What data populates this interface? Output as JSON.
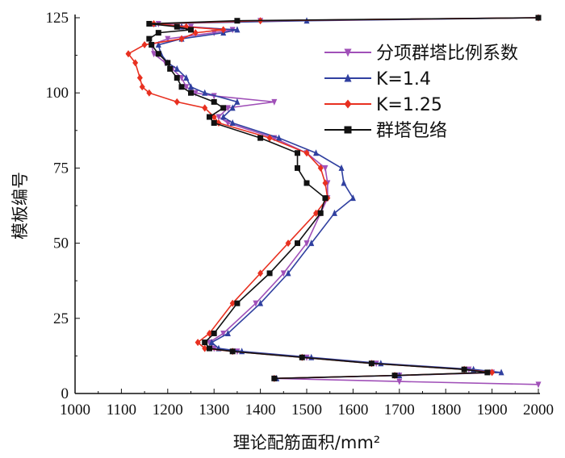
{
  "chart_data": {
    "type": "line",
    "xlabel": "理论配筋面积/mm²",
    "ylabel": "模板编号",
    "xlim": [
      1000,
      2000
    ],
    "ylim": [
      0,
      125
    ],
    "xticks": [
      "1000",
      "1100",
      "1200",
      "1300",
      "1400",
      "1500",
      "1600",
      "1700",
      "1800",
      "1900",
      "2000"
    ],
    "yticks": [
      "0",
      "25",
      "50",
      "75",
      "100",
      "125"
    ],
    "legend_position": "top-right",
    "series": [
      {
        "name": "分项群塔比例系数",
        "color": "#a050b8",
        "marker": "triangle-down",
        "points": [
          [
            2000,
            3
          ],
          [
            1700,
            4
          ],
          [
            1430,
            5
          ],
          [
            1700,
            6
          ],
          [
            1900,
            7
          ],
          [
            1850,
            8
          ],
          [
            1650,
            10
          ],
          [
            1500,
            12
          ],
          [
            1350,
            14
          ],
          [
            1300,
            15
          ],
          [
            1290,
            17
          ],
          [
            1320,
            20
          ],
          [
            1390,
            30
          ],
          [
            1450,
            40
          ],
          [
            1500,
            50
          ],
          [
            1530,
            60
          ],
          [
            1545,
            65
          ],
          [
            1545,
            70
          ],
          [
            1540,
            75
          ],
          [
            1500,
            80
          ],
          [
            1430,
            85
          ],
          [
            1330,
            90
          ],
          [
            1310,
            92
          ],
          [
            1330,
            95
          ],
          [
            1430,
            97
          ],
          [
            1300,
            99
          ],
          [
            1260,
            100
          ],
          [
            1240,
            102
          ],
          [
            1230,
            105
          ],
          [
            1210,
            108
          ],
          [
            1195,
            110
          ],
          [
            1170,
            113
          ],
          [
            1165,
            116
          ],
          [
            1200,
            118
          ],
          [
            1300,
            120
          ],
          [
            1340,
            121
          ],
          [
            1250,
            122
          ],
          [
            1180,
            123
          ],
          [
            1400,
            124
          ],
          [
            2000,
            125
          ]
        ]
      },
      {
        "name": "K=1.4",
        "color": "#3040a0",
        "marker": "triangle-up",
        "points": [
          [
            1435,
            5
          ],
          [
            1700,
            6
          ],
          [
            1920,
            7
          ],
          [
            1860,
            8
          ],
          [
            1660,
            10
          ],
          [
            1510,
            12
          ],
          [
            1360,
            14
          ],
          [
            1310,
            15
          ],
          [
            1295,
            17
          ],
          [
            1330,
            20
          ],
          [
            1400,
            30
          ],
          [
            1460,
            40
          ],
          [
            1510,
            50
          ],
          [
            1560,
            60
          ],
          [
            1600,
            65
          ],
          [
            1580,
            70
          ],
          [
            1575,
            75
          ],
          [
            1520,
            80
          ],
          [
            1440,
            85
          ],
          [
            1340,
            90
          ],
          [
            1320,
            92
          ],
          [
            1340,
            95
          ],
          [
            1350,
            97
          ],
          [
            1280,
            100
          ],
          [
            1250,
            102
          ],
          [
            1240,
            105
          ],
          [
            1220,
            108
          ],
          [
            1200,
            110
          ],
          [
            1185,
            113
          ],
          [
            1180,
            116
          ],
          [
            1230,
            118
          ],
          [
            1320,
            120
          ],
          [
            1350,
            121
          ],
          [
            1230,
            122
          ],
          [
            1170,
            123
          ],
          [
            1500,
            124
          ],
          [
            2000,
            125
          ]
        ]
      },
      {
        "name": "K=1.25",
        "color": "#e83020",
        "marker": "diamond",
        "points": [
          [
            1430,
            5
          ],
          [
            1690,
            6
          ],
          [
            1900,
            7
          ],
          [
            1840,
            8
          ],
          [
            1640,
            10
          ],
          [
            1490,
            12
          ],
          [
            1340,
            14
          ],
          [
            1280,
            15
          ],
          [
            1265,
            17
          ],
          [
            1290,
            20
          ],
          [
            1340,
            30
          ],
          [
            1400,
            40
          ],
          [
            1460,
            50
          ],
          [
            1520,
            60
          ],
          [
            1545,
            65
          ],
          [
            1540,
            70
          ],
          [
            1530,
            75
          ],
          [
            1500,
            80
          ],
          [
            1420,
            85
          ],
          [
            1310,
            90
          ],
          [
            1300,
            92
          ],
          [
            1280,
            95
          ],
          [
            1220,
            97
          ],
          [
            1160,
            100
          ],
          [
            1145,
            102
          ],
          [
            1140,
            105
          ],
          [
            1130,
            110
          ],
          [
            1115,
            113
          ],
          [
            1150,
            116
          ],
          [
            1230,
            118
          ],
          [
            1260,
            120
          ],
          [
            1320,
            121
          ],
          [
            1240,
            122
          ],
          [
            1170,
            123
          ],
          [
            1400,
            124
          ],
          [
            2000,
            125
          ]
        ]
      },
      {
        "name": "群塔包络",
        "color": "#111111",
        "marker": "square",
        "points": [
          [
            1430,
            5
          ],
          [
            1690,
            6
          ],
          [
            1890,
            7
          ],
          [
            1840,
            8
          ],
          [
            1640,
            10
          ],
          [
            1490,
            12
          ],
          [
            1340,
            14
          ],
          [
            1290,
            15
          ],
          [
            1280,
            17
          ],
          [
            1300,
            20
          ],
          [
            1350,
            30
          ],
          [
            1420,
            40
          ],
          [
            1480,
            50
          ],
          [
            1530,
            60
          ],
          [
            1540,
            65
          ],
          [
            1500,
            70
          ],
          [
            1480,
            75
          ],
          [
            1480,
            80
          ],
          [
            1400,
            85
          ],
          [
            1300,
            90
          ],
          [
            1290,
            92
          ],
          [
            1320,
            95
          ],
          [
            1300,
            97
          ],
          [
            1250,
            100
          ],
          [
            1230,
            102
          ],
          [
            1220,
            105
          ],
          [
            1205,
            108
          ],
          [
            1200,
            110
          ],
          [
            1180,
            113
          ],
          [
            1165,
            116
          ],
          [
            1160,
            118
          ],
          [
            1180,
            120
          ],
          [
            1250,
            121
          ],
          [
            1220,
            122
          ],
          [
            1160,
            123
          ],
          [
            1350,
            124
          ],
          [
            2000,
            125
          ]
        ]
      }
    ]
  }
}
